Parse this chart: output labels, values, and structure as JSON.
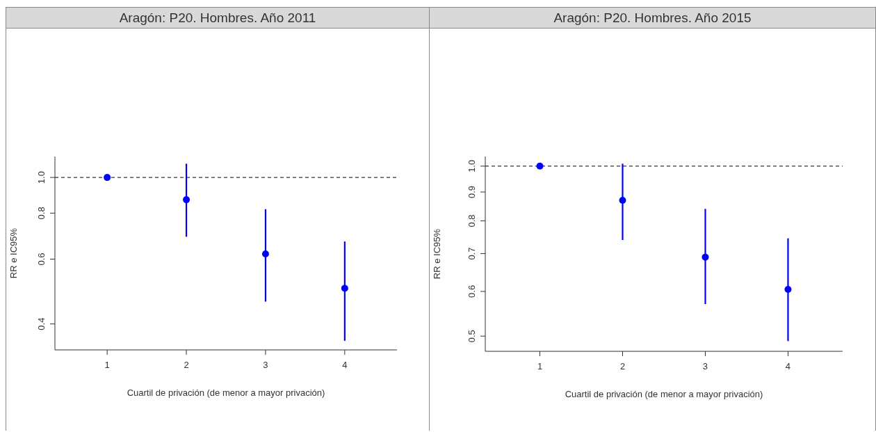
{
  "chart_data": [
    {
      "type": "scatter",
      "title": "Aragón: P20. Hombres. Año 2011",
      "xlabel": "Cuartil de privación (de menor a mayor privación)",
      "ylabel": "RR e IC95%",
      "x": [
        1,
        2,
        3,
        4
      ],
      "values": [
        1.0,
        0.87,
        0.62,
        0.5
      ],
      "errors": [
        null,
        [
          0.69,
          1.09
        ],
        [
          0.46,
          0.82
        ],
        [
          0.36,
          0.67
        ]
      ],
      "color": "#0000ff",
      "marker": "circle",
      "log": "y",
      "xlim": [
        0.34,
        4.66
      ],
      "xticks": [
        1,
        2,
        3,
        4
      ],
      "ylim": [
        0.34,
        1.14
      ],
      "yticks": [
        0.4,
        0.6,
        0.8,
        {
          "value": 1,
          "label": "1.0"
        }
      ],
      "ref_lines": [
        {
          "axis": "y",
          "value": 1,
          "color": "#000000",
          "line_style": "dashed"
        }
      ]
    },
    {
      "type": "scatter",
      "title": "Aragón: P20. Hombres. Año 2015",
      "xlabel": "Cuartil de privación (de menor a mayor privación)",
      "ylabel": "RR e IC95%",
      "x": [
        1,
        2,
        3,
        4
      ],
      "values": [
        1.0,
        0.87,
        0.69,
        0.605
      ],
      "errors": [
        null,
        [
          0.74,
          1.01
        ],
        [
          0.57,
          0.84
        ],
        [
          0.49,
          0.745
        ]
      ],
      "color": "#0000ff",
      "marker": "circle",
      "log": "y",
      "xlim": [
        0.34,
        4.66
      ],
      "xticks": [
        1,
        2,
        3,
        4
      ],
      "ylim": [
        0.47,
        1.04
      ],
      "yticks": [
        0.5,
        0.6,
        0.7,
        0.8,
        0.9,
        {
          "value": 1,
          "label": "1.0"
        }
      ],
      "ref_lines": [
        {
          "axis": "y",
          "value": 1,
          "color": "#000000",
          "line_style": "dashed"
        }
      ]
    }
  ]
}
